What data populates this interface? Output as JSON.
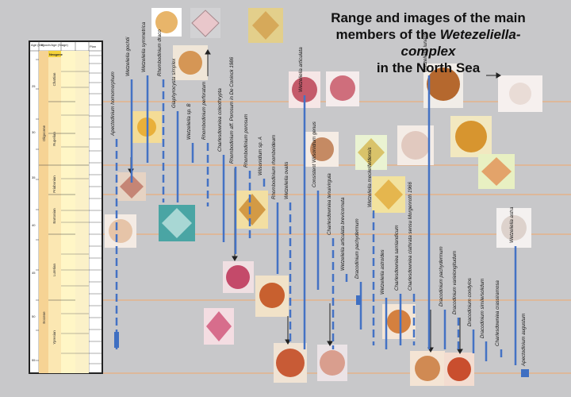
{
  "title": {
    "line1": "Range and images of the main",
    "line2_prefix": "members of the ",
    "line2_italic": "Wetezeliella-complex",
    "line3": "in the North Sea"
  },
  "chart_data": {
    "type": "range-chart",
    "stratigraphy_header": {
      "col1": "Age (Ma)",
      "col2": "Epoch/Age (Stage)",
      "neogene_label": "Neogene",
      "right_label": "Plan"
    },
    "stages": [
      "Chattian",
      "Rupelian",
      "Priabonian",
      "Bartonian",
      "Lutetian",
      "Ypresian"
    ],
    "epochs": [
      "Oligocene",
      "Eocene"
    ],
    "age_ticks": [
      "25",
      "30",
      "35",
      "40",
      "45",
      "50",
      "55"
    ],
    "taxa": [
      {
        "name": "Apectodinium homomorphum",
        "range": [
          440,
          175
        ]
      },
      {
        "name": "Wetzeliella gochtii",
        "range": [
          230,
          100
        ]
      },
      {
        "name": "Wetzeliella symmetrica",
        "range": [
          205,
          95
        ]
      },
      {
        "name": "Rhombodinium draco",
        "range": [
          255,
          100
        ]
      },
      {
        "name": "Glaphyrocysta simplex",
        "range": [
          255,
          140
        ]
      },
      {
        "name": "Wetzeliella sp. B",
        "range": [
          205,
          180
        ]
      },
      {
        "name": "Rhombodinium perforatum",
        "range": [
          260,
          180
        ]
      },
      {
        "name": "Charlesdowniea coleothrypta",
        "range": [
          305,
          195
        ]
      },
      {
        "name": "Rhombodinium aff. Porosum in De Coninck 1986",
        "range": [
          320,
          210
        ]
      },
      {
        "name": "Rhombodinium porosum",
        "range": [
          300,
          215
        ]
      },
      {
        "name": "Wilsonidium sp. A",
        "range": [
          235,
          225
        ]
      },
      {
        "name": "Rhombodinium rhomboideum",
        "range": [
          345,
          255
        ]
      },
      {
        "name": "Wetzeliella ovalis",
        "range": [
          430,
          255
        ]
      },
      {
        "name": "Wetzeliella articulata",
        "range": [
          440,
          120
        ]
      },
      {
        "name": "Consistent Wilsonidium genus",
        "range": [
          365,
          240
        ]
      },
      {
        "name": "Charlesdowniea tenuivirgula",
        "range": [
          440,
          300
        ]
      },
      {
        "name": "Wetzeliella articulata brevicornuta",
        "range": [
          355,
          345
        ]
      },
      {
        "name": "Dracodinium pachydermum",
        "range": [
          415,
          355
        ]
      },
      {
        "name": "Wetzeliella meckelfeldensis",
        "range": [
          435,
          265
        ]
      },
      {
        "name": "Wetzeliella astroides",
        "range": [
          440,
          375
        ]
      },
      {
        "name": "Charlesdowniea samlandicum",
        "range": [
          435,
          370
        ]
      },
      {
        "name": "Charlesdowniea clathrata sensu Morgenroth 1966",
        "range": [
          435,
          370
        ]
      },
      {
        "name": "Wetzeliella lunaris",
        "range": [
          440,
          95
        ]
      },
      {
        "name": "Dracodinium pachydermum",
        "range": [
          440,
          390
        ]
      },
      {
        "name": "Dracodinium varielongitudum",
        "range": [
          440,
          400
        ]
      },
      {
        "name": "Dracodinium condylos",
        "range": [
          445,
          415
        ]
      },
      {
        "name": "Dracodinium simile/solidum",
        "range": [
          455,
          430
        ]
      },
      {
        "name": "Charlesdowniea crassiramosa",
        "range": [
          455,
          440
        ]
      },
      {
        "name": "Wetzeliella astra",
        "range": [
          460,
          310
        ]
      },
      {
        "name": "Apectodinium augustum",
        "range": [
          475,
          465
        ]
      }
    ]
  }
}
